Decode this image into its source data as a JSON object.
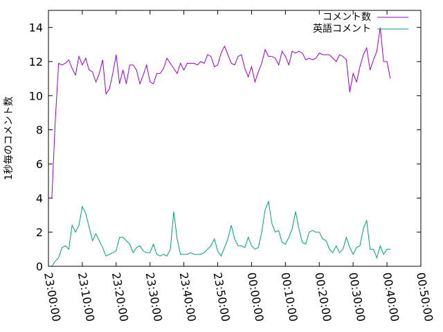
{
  "chart_data": {
    "type": "line",
    "title": "",
    "xlabel": "",
    "ylabel": "1秒毎のコメント数",
    "x_ticks": [
      "23:00:00",
      "23:10:00",
      "23:20:00",
      "23:30:00",
      "23:40:00",
      "23:50:00",
      "00:00:00",
      "00:10:00",
      "00:20:00",
      "00:30:00",
      "00:40:00",
      "00:50:00"
    ],
    "x_range_minutes": [
      0,
      110
    ],
    "y_ticks": [
      "0",
      "2",
      "4",
      "6",
      "8",
      "10",
      "12",
      "14"
    ],
    "ylim": [
      0,
      15
    ],
    "legend": {
      "placement": "top-right"
    },
    "series": [
      {
        "name": "コメント数",
        "color": "#9400d3",
        "x": [
          1,
          2,
          3,
          4,
          5,
          6,
          7,
          8,
          9,
          10,
          11,
          12,
          13,
          14,
          15,
          16,
          17,
          18,
          19,
          20,
          21,
          22,
          23,
          24,
          25,
          26,
          27,
          28,
          29,
          30,
          31,
          32,
          33,
          34,
          35,
          36,
          37,
          38,
          39,
          40,
          41,
          42,
          43,
          44,
          45,
          46,
          47,
          48,
          49,
          50,
          51,
          52,
          53,
          54,
          55,
          56,
          57,
          58,
          59,
          60,
          61,
          62,
          63,
          64,
          65,
          66,
          67,
          68,
          69,
          70,
          71,
          72,
          73,
          74,
          75,
          76,
          77,
          78,
          79,
          80,
          81,
          82,
          83,
          84,
          85,
          86,
          87,
          88,
          89,
          90,
          91,
          92,
          93,
          94,
          95,
          96,
          97,
          98,
          99,
          100,
          101
        ],
        "y": [
          4.0,
          8.5,
          11.9,
          11.8,
          11.9,
          12.1,
          11.6,
          11.2,
          12.3,
          11.8,
          12.2,
          11.5,
          11.4,
          10.8,
          11.3,
          12.1,
          10.1,
          10.4,
          11.3,
          12.4,
          10.7,
          11.5,
          10.7,
          11.8,
          11.8,
          11.5,
          10.7,
          11.2,
          11.8,
          10.8,
          10.7,
          11.3,
          11.3,
          11.6,
          12.2,
          11.9,
          11.6,
          11.3,
          11.9,
          11.5,
          11.9,
          11.9,
          11.9,
          11.8,
          12.0,
          11.9,
          12.4,
          12.3,
          11.7,
          11.8,
          12.5,
          12.9,
          12.4,
          11.9,
          11.8,
          12.3,
          12.4,
          11.6,
          11.1,
          11.7,
          10.8,
          11.4,
          11.9,
          12.7,
          12.3,
          12.3,
          12.2,
          11.8,
          12.6,
          12.3,
          11.8,
          12.6,
          12.5,
          12.6,
          12.5,
          12.1,
          12.2,
          12.1,
          12.2,
          12.5,
          12.4,
          12.4,
          12.4,
          12.2,
          12.0,
          12.4,
          12.3,
          12.1,
          10.2,
          11.3,
          10.8,
          11.7,
          12.4,
          12.8,
          11.5,
          12.1,
          12.6,
          14.0,
          12.0,
          12.0,
          11.0
        ]
      },
      {
        "name": "英語コメント",
        "color": "#009e73",
        "x": [
          1,
          2,
          3,
          4,
          5,
          6,
          7,
          8,
          9,
          10,
          11,
          12,
          13,
          14,
          15,
          16,
          17,
          18,
          19,
          20,
          21,
          22,
          23,
          24,
          25,
          26,
          27,
          28,
          29,
          30,
          31,
          32,
          33,
          34,
          35,
          36,
          37,
          38,
          39,
          40,
          41,
          42,
          43,
          44,
          45,
          46,
          47,
          48,
          49,
          50,
          51,
          52,
          53,
          54,
          55,
          56,
          57,
          58,
          59,
          60,
          61,
          62,
          63,
          64,
          65,
          66,
          67,
          68,
          69,
          70,
          71,
          72,
          73,
          74,
          75,
          76,
          77,
          78,
          79,
          80,
          81,
          82,
          83,
          84,
          85,
          86,
          87,
          88,
          89,
          90,
          91,
          92,
          93,
          94,
          95,
          96,
          97,
          98,
          99,
          100,
          101
        ],
        "y": [
          0.0,
          0.3,
          0.5,
          1.1,
          1.2,
          1.0,
          2.4,
          2.0,
          2.4,
          3.5,
          3.1,
          2.3,
          1.5,
          1.9,
          1.5,
          1.1,
          0.6,
          0.7,
          0.8,
          0.9,
          1.7,
          1.7,
          1.5,
          1.3,
          0.8,
          1.1,
          1.2,
          0.9,
          0.8,
          0.8,
          1.3,
          0.7,
          0.6,
          0.7,
          0.6,
          1.0,
          3.2,
          1.6,
          0.7,
          0.7,
          0.7,
          0.8,
          0.7,
          0.7,
          0.7,
          0.8,
          1.0,
          1.2,
          1.6,
          0.9,
          0.6,
          1.1,
          1.6,
          2.4,
          1.6,
          1.2,
          1.2,
          1.1,
          1.7,
          1.2,
          1.0,
          1.1,
          2.0,
          3.3,
          3.8,
          2.5,
          2.0,
          2.1,
          1.4,
          1.3,
          1.7,
          2.2,
          3.2,
          2.2,
          1.4,
          1.3,
          2.0,
          2.1,
          2.0,
          2.0,
          1.6,
          1.5,
          1.0,
          0.8,
          1.2,
          0.8,
          1.0,
          1.7,
          1.1,
          0.7,
          1.1,
          1.2,
          2.2,
          2.7,
          1.0,
          1.0,
          0.5,
          1.2,
          0.7,
          1.0,
          1.0
        ]
      }
    ]
  }
}
